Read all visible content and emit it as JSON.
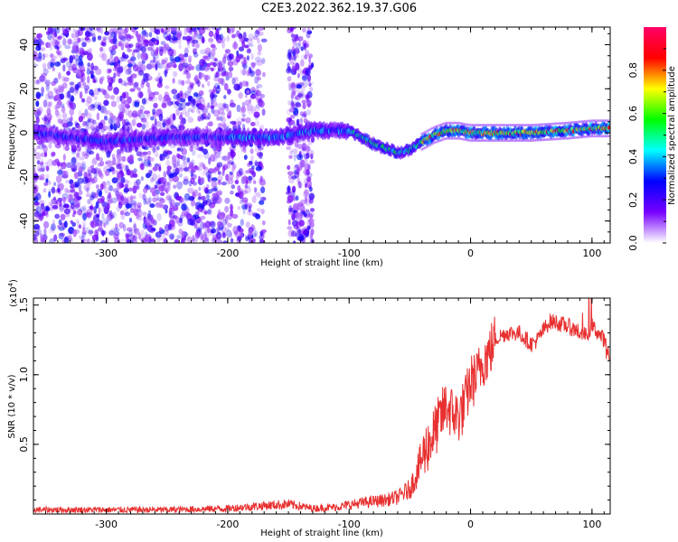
{
  "title": "C2E3.2022.362.19.37.G06",
  "chart_data": [
    {
      "type": "heatmap",
      "xlabel": "Height of straight line (km)",
      "ylabel": "Frequency (Hz)",
      "xlim": [
        -360,
        115
      ],
      "ylim": [
        -50,
        48
      ],
      "xticks": [
        -300,
        -200,
        -100,
        0,
        100
      ],
      "yticks": [
        -40,
        -20,
        0,
        20,
        40
      ],
      "colorbar": {
        "label": "Normalized spectral amplitude",
        "range": [
          0,
          1
        ],
        "ticks": [
          "0.0",
          "0.2",
          "0.4",
          "0.6",
          "0.8"
        ],
        "colors": [
          "#ffffff",
          "#7700ff",
          "#0000ff",
          "#00ffff",
          "#00ff00",
          "#ffff00",
          "#ff0000",
          "#ff0066"
        ]
      },
      "trace": {
        "x": [
          -360,
          -300,
          -250,
          -200,
          -160,
          -130,
          -100,
          -80,
          -60,
          -50,
          -40,
          -30,
          -20,
          -10,
          0,
          20,
          50,
          80,
          100,
          115
        ],
        "y": [
          0,
          -4,
          -2,
          -2,
          -2,
          1,
          1,
          -5,
          -9,
          -8,
          -4,
          -1,
          1,
          1,
          0,
          0,
          0,
          1,
          2,
          2
        ]
      },
      "grid": false
    },
    {
      "type": "line",
      "xlabel": "Height of straight line (km)",
      "ylabel": "SNR (10 * v/v)",
      "yscale_label": "(x10",
      "yscale_exp": "4",
      "xlim": [
        -360,
        115
      ],
      "ylim": [
        0,
        1.55
      ],
      "xticks": [
        -300,
        -200,
        -100,
        0,
        100
      ],
      "yticks": [
        "0.5",
        "1.0",
        "1.5"
      ],
      "series": [
        {
          "color": "#e83030",
          "x": [
            -360,
            -300,
            -250,
            -200,
            -170,
            -150,
            -130,
            -110,
            -90,
            -70,
            -60,
            -50,
            -45,
            -40,
            -35,
            -30,
            -25,
            -20,
            -15,
            -10,
            -5,
            0,
            5,
            10,
            15,
            20,
            25,
            30,
            40,
            50,
            55,
            60,
            65,
            70,
            75,
            80,
            90,
            95,
            100,
            105,
            110,
            115
          ],
          "values": [
            0.03,
            0.03,
            0.03,
            0.04,
            0.06,
            0.07,
            0.04,
            0.05,
            0.08,
            0.1,
            0.12,
            0.18,
            0.28,
            0.4,
            0.5,
            0.58,
            0.68,
            0.78,
            0.72,
            0.7,
            0.78,
            0.95,
            0.98,
            1.1,
            1.15,
            1.25,
            1.28,
            1.3,
            1.3,
            1.22,
            1.25,
            1.32,
            1.38,
            1.38,
            1.36,
            1.35,
            1.3,
            1.28,
            1.35,
            1.3,
            1.25,
            1.1
          ]
        }
      ],
      "grid": false
    }
  ]
}
